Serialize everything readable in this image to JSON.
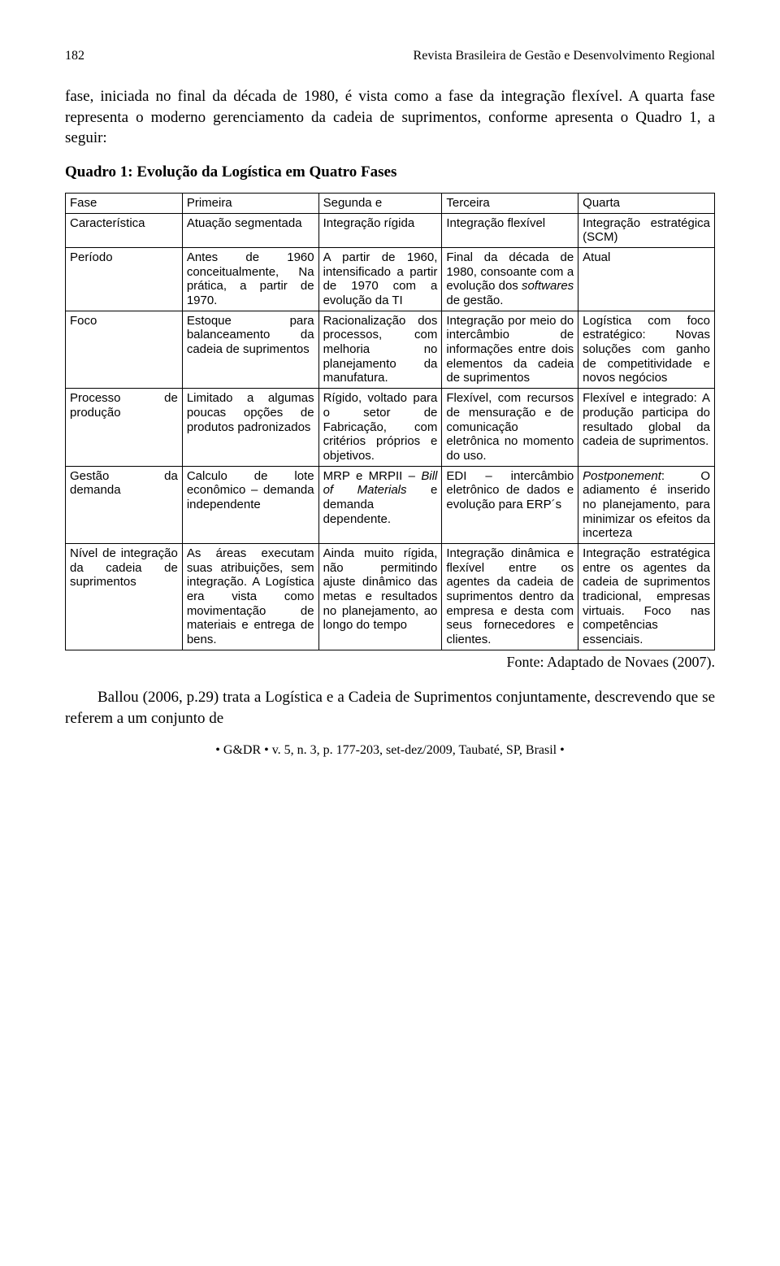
{
  "header": {
    "page_number": "182",
    "journal": "Revista Brasileira de Gestão e Desenvolvimento Regional"
  },
  "intro": "fase, iniciada no final da década de 1980, é vista como a fase da integração flexível. A quarta fase representa o moderno gerenciamento da cadeia de suprimentos, conforme apresenta o Quadro 1, a seguir:",
  "quadro_title": "Quadro 1: Evolução da Logística em Quatro Fases",
  "table": {
    "columns": [
      "",
      "",
      "",
      "",
      ""
    ],
    "rows": [
      [
        "Fase",
        "Primeira",
        "Segunda e",
        "Terceira",
        "Quarta"
      ],
      [
        "Característica",
        "Atuação segmentada",
        "Integração rígida",
        "Integração flexível",
        "Integração estratégica (SCM)"
      ],
      [
        "Período",
        "Antes de 1960 conceitualmente, Na prática, a partir de 1970.",
        "A partir de 1960, intensificado a partir de 1970 com a evolução da TI",
        "Final da década de 1980, consoante com a evolução dos softwares de gestão.",
        "Atual"
      ],
      [
        "Foco",
        "Estoque para balanceamento da cadeia de suprimentos",
        "Racionalização dos processos, com melhoria no planejamento da manufatura.",
        "Integração por meio do intercâmbio de informações entre dois elementos da cadeia de suprimentos",
        "Logística com foco estratégico: Novas soluções com ganho de competitividade e novos negócios"
      ],
      [
        "Processo de produção",
        "Limitado a algumas poucas opções de produtos padronizados",
        "Rígido, voltado para o setor de Fabricação, com critérios próprios e objetivos.",
        "Flexível, com recursos de mensuração e de comunicação eletrônica no momento do uso.",
        "Flexível e integrado: A produção participa do resultado global da cadeia de suprimentos."
      ],
      [
        "Gestão da demanda",
        "Calculo de lote econômico – demanda independente",
        "MRP e MRPII – Bill of Materials e demanda dependente.",
        "EDI – intercâmbio eletrônico de dados e evolução para ERP´s",
        "Postponement: O adiamento é inserido no planejamento, para minimizar os efeitos da incerteza"
      ],
      [
        "Nível de integração da cadeia de suprimentos",
        "As áreas executam suas atribuições, sem integração. A Logística era vista como movimentação de materiais e entrega de bens.",
        "Ainda muito rígida, não permitindo ajuste dinâmico das metas e resultados no planejamento, ao longo do tempo",
        "Integração dinâmica e flexível entre os agentes da cadeia de suprimentos dentro da empresa e desta com seus fornecedores e clientes.",
        "Integração estratégica entre os agentes da cadeia de suprimentos tradicional, empresas virtuais. Foco nas competências essenciais."
      ]
    ],
    "col_widths": [
      "18%",
      "21%",
      "19%",
      "21%",
      "21%"
    ]
  },
  "fonte": "Fonte: Adaptado de Novaes (2007).",
  "closing": "Ballou (2006, p.29) trata a Logística e a Cadeia de Suprimentos conjuntamente, descrevendo que se referem a um conjunto de",
  "footer": "• G&DR • v. 5, n. 3, p. 177-203, set-dez/2009, Taubaté, SP, Brasil •"
}
